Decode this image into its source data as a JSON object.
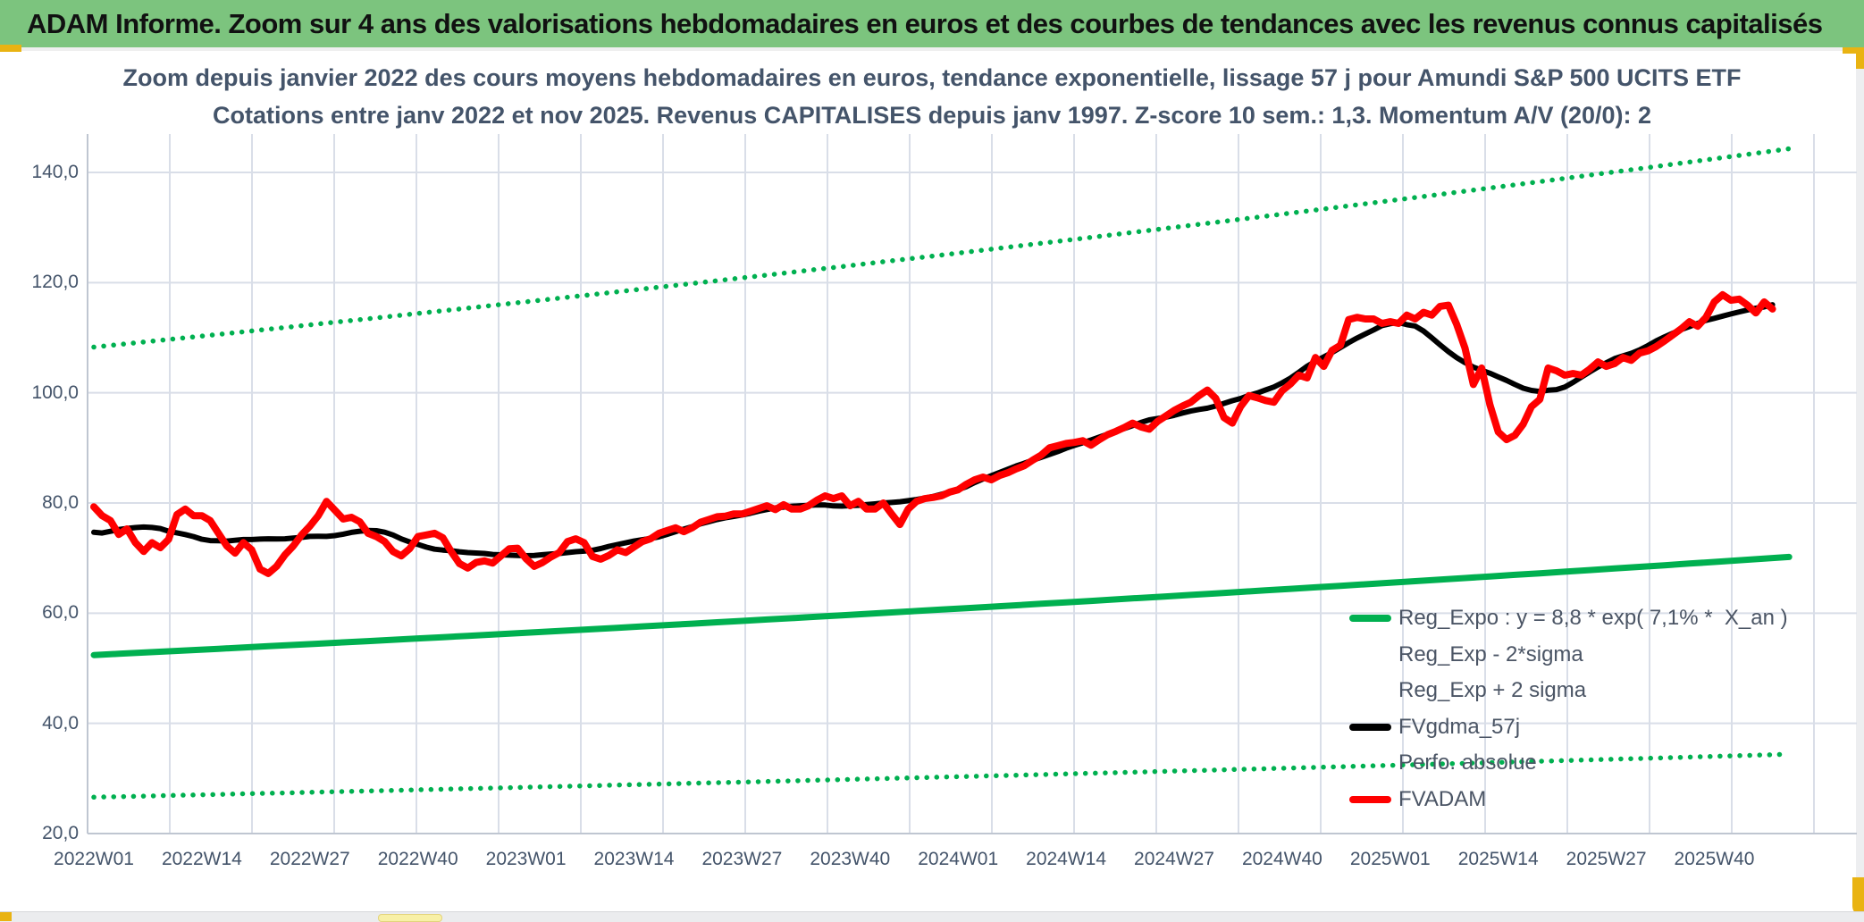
{
  "banner": {
    "title": "ADAM Informe. Zoom sur 4 ans des valorisations hebdomadaires en euros et des courbes de tendances avec les revenus connus capitalisés",
    "background_color": "#7cc47e",
    "accent_gold_color": "#e9b312"
  },
  "chart_data": {
    "type": "line",
    "title": "Zoom depuis janvier 2022 des cours moyens hebdomadaires en euros, tendance exponentielle, lissage 57 j pour Amundi S&P 500 UCITS ETF",
    "subtitle": "Cotations entre janv 2022 et nov 2025. Revenus CAPITALISES depuis janv 1997. Z-score 10 sem.: 1,3. Momentum A/V (20/0): 2",
    "grid": true,
    "legend_position": "inside-bottom-right",
    "x_axis": {
      "type": "category-weeks",
      "start_week": "2022W01",
      "end_week": "2025W46",
      "tick_labels": [
        "2022W01",
        "2022W14",
        "2022W27",
        "2022W40",
        "2023W01",
        "2023W14",
        "2023W27",
        "2023W40",
        "2024W01",
        "2024W14",
        "2024W27",
        "2024W40",
        "2025W01",
        "2025W14",
        "2025W27",
        "2025W40"
      ],
      "label_interval_weeks": 13
    },
    "y_axis": {
      "min": 20,
      "max": 148,
      "gridline_step": 20,
      "tick_labels": [
        "140,0",
        "120,0",
        "100,0",
        "80,0",
        "60,0",
        "40,0",
        "20,0"
      ],
      "tick_values": [
        140,
        120,
        100,
        80,
        60,
        40,
        20
      ]
    },
    "series": [
      {
        "name": "Reg_Expo : y = 8,8 * exp( 7,1% *  X_an )",
        "color": "#00b050",
        "style": "solid",
        "width": 7,
        "model": "exponential",
        "start_value": 52.4,
        "end_value": 70.2,
        "span_weeks": 204
      },
      {
        "name": "Reg_Exp - 2*sigma",
        "color": "#00b050",
        "style": "dotted",
        "width": 5.5,
        "model": "exponential",
        "start_value": 26.6,
        "end_value": 34.4,
        "span_weeks": 204
      },
      {
        "name": "Reg_Exp + 2 sigma",
        "color": "#00b050",
        "style": "dotted",
        "width": 5.5,
        "model": "exponential",
        "start_value": 108.3,
        "end_value": 144.3,
        "span_weeks": 204
      },
      {
        "name": "FVgdma_57j",
        "color": "#000000",
        "style": "solid",
        "width": 6,
        "derived": "centered_moving_average_of_FVADAM",
        "window_weeks": 17
      },
      {
        "name": "Perfo. absolue",
        "color": "#ff0000",
        "style": "dotted",
        "width": 5,
        "same_as": "FVADAM"
      },
      {
        "name": "FVADAM",
        "color": "#ff0000",
        "style": "solid",
        "width": 8,
        "start_week": "2022W01",
        "values": [
          79.3,
          77.7,
          76.8,
          74.3,
          75.3,
          72.8,
          71.2,
          72.8,
          71.9,
          73.4,
          77.9,
          78.9,
          77.7,
          77.7,
          76.8,
          74.5,
          72.2,
          70.9,
          72.8,
          71.5,
          68.0,
          67.2,
          68.5,
          70.6,
          72.2,
          74.2,
          75.8,
          77.7,
          80.3,
          78.7,
          77.1,
          77.4,
          76.6,
          74.5,
          73.9,
          73.0,
          71.2,
          70.4,
          71.7,
          73.9,
          74.2,
          74.5,
          73.7,
          71.2,
          69.0,
          68.2,
          69.2,
          69.5,
          69.1,
          70.4,
          71.7,
          71.8,
          69.9,
          68.5,
          69.2,
          70.2,
          71.0,
          73.0,
          73.5,
          72.8,
          70.3,
          69.8,
          70.5,
          71.5,
          71.0,
          72.0,
          73.0,
          73.5,
          74.5,
          75.0,
          75.5,
          74.8,
          75.5,
          76.5,
          77.0,
          77.5,
          77.6,
          78.0,
          78.0,
          78.5,
          79.0,
          79.5,
          78.8,
          79.7,
          78.9,
          78.9,
          79.5,
          80.5,
          81.3,
          80.8,
          81.3,
          79.5,
          80.3,
          78.9,
          78.9,
          80.0,
          78.0,
          76.1,
          78.9,
          80.3,
          80.8,
          81.0,
          81.3,
          82.0,
          82.4,
          83.4,
          84.2,
          84.7,
          84.2,
          85.0,
          85.5,
          86.2,
          86.8,
          87.8,
          88.7,
          90.0,
          90.4,
          90.8,
          91.0,
          91.3,
          90.5,
          91.5,
          92.4,
          93.0,
          93.7,
          94.5,
          93.8,
          93.4,
          94.8,
          95.8,
          96.8,
          97.6,
          98.3,
          99.5,
          100.5,
          99.0,
          95.5,
          94.5,
          97.5,
          99.5,
          99.1,
          98.6,
          98.3,
          100.4,
          101.6,
          103.2,
          102.7,
          106.4,
          104.8,
          107.7,
          108.6,
          113.3,
          113.7,
          113.4,
          113.4,
          112.6,
          112.9,
          112.6,
          114.1,
          113.4,
          114.6,
          114.1,
          115.7,
          115.9,
          112.4,
          108.1,
          101.5,
          104.5,
          97.8,
          92.9,
          91.5,
          92.3,
          94.3,
          97.5,
          98.8,
          104.5,
          104.0,
          103.2,
          103.5,
          103.2,
          104.3,
          105.6,
          104.8,
          105.3,
          106.4,
          105.9,
          107.2,
          107.6,
          108.4,
          109.4,
          110.5,
          111.6,
          112.9,
          112.1,
          113.7,
          116.5,
          117.8,
          116.8,
          117.0,
          115.9,
          114.5,
          116.5,
          115.2
        ]
      }
    ],
    "annotations": {
      "z_score_10_sem": "1,3",
      "momentum_av_20_0": "2"
    }
  },
  "legend": {
    "entries": [
      {
        "label": "Reg_Expo : y = 8,8 * exp( 7,1% *  X_an )",
        "color": "#00b050",
        "style": "solid"
      },
      {
        "label": "Reg_Exp - 2*sigma",
        "color": "#00b050",
        "style": "dotted"
      },
      {
        "label": "Reg_Exp + 2 sigma",
        "color": "#00b050",
        "style": "dotted"
      },
      {
        "label": "FVgdma_57j",
        "color": "#000000",
        "style": "solid"
      },
      {
        "label": "Perfo. absolue",
        "color": "#ff0000",
        "style": "dotted"
      },
      {
        "label": "FVADAM",
        "color": "#ff0000",
        "style": "solid"
      }
    ]
  },
  "colors": {
    "gridline": "#d9dee8",
    "axis_line": "#bfc6d1",
    "title_text": "#44546a",
    "tick_text": "#44546a",
    "legend_text": "#4b5565"
  }
}
